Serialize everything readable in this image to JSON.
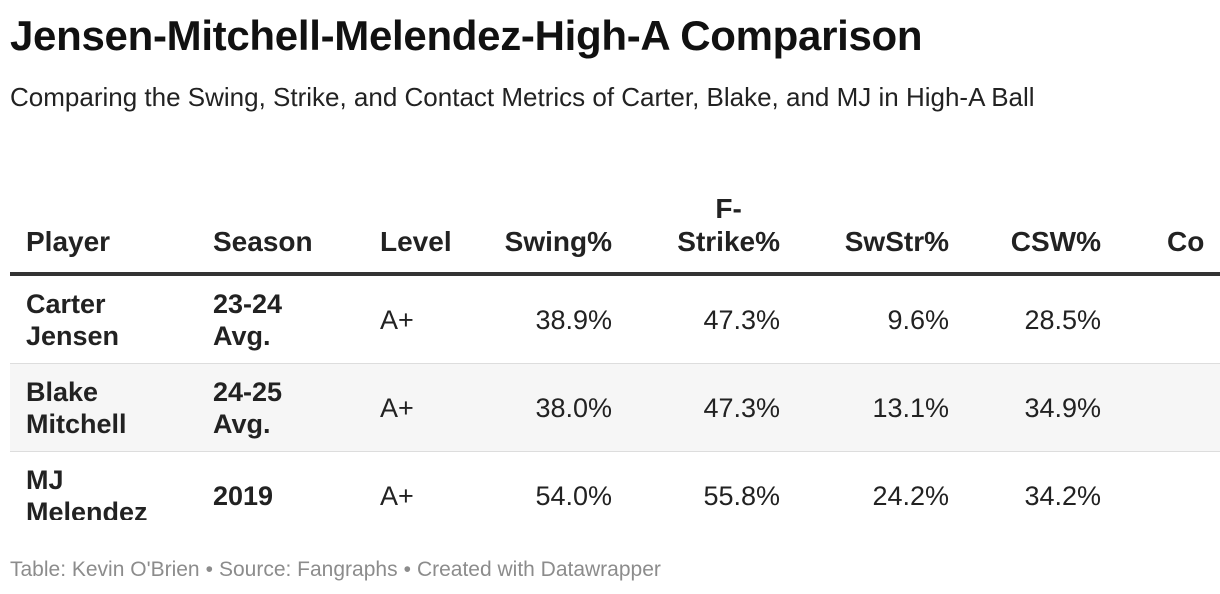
{
  "title": "Jensen-Mitchell-Melendez-High-A Comparison",
  "subtitle": "Comparing the Swing, Strike, and Contact Metrics of Carter, Blake, and MJ in High-A Ball",
  "table": {
    "headers": {
      "player": "Player",
      "season": "Season",
      "level": "Level",
      "swing": "Swing%",
      "fstrike_line1": "F-",
      "fstrike_line2": "Strike%",
      "swstr": "SwStr%",
      "csw": "CSW%",
      "contact": "Co"
    },
    "rows": [
      {
        "player_first": "Carter",
        "player_last": "Jensen",
        "season_line1": "23-24",
        "season_line2": "Avg.",
        "level": "A+",
        "swing": "38.9%",
        "fstrike": "47.3%",
        "swstr": "9.6%",
        "csw": "28.5%"
      },
      {
        "player_first": "Blake",
        "player_last": "Mitchell",
        "season_line1": "24-25",
        "season_line2": "Avg.",
        "level": "A+",
        "swing": "38.0%",
        "fstrike": "47.3%",
        "swstr": "13.1%",
        "csw": "34.9%"
      },
      {
        "player_first": "MJ",
        "player_last": "Melendez",
        "season_line1": "2019",
        "season_line2": "",
        "level": "A+",
        "swing": "54.0%",
        "fstrike": "55.8%",
        "swstr": "24.2%",
        "csw": "34.2%"
      }
    ]
  },
  "footer": {
    "table_credit": "Table: Kevin O'Brien",
    "source": "Source: Fangraphs",
    "created": "Created with Datawrapper",
    "separator": "•"
  },
  "colors": {
    "header_rule": "#333333",
    "row_shade": "#f6f6f6",
    "footer_text": "#8c8c8c"
  }
}
